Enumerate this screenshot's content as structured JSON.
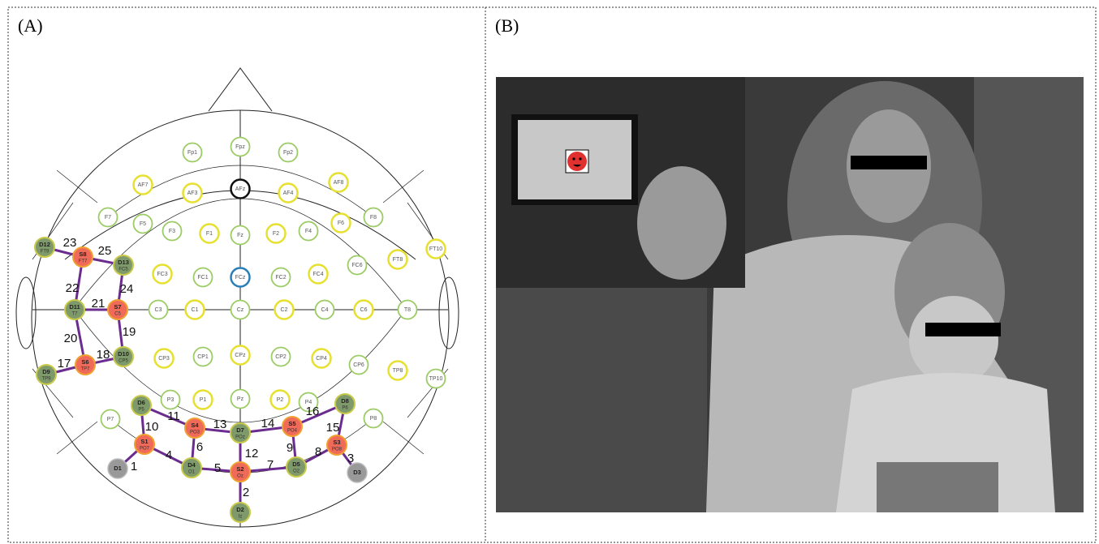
{
  "panels": [
    {
      "label": "(A)"
    },
    {
      "label": "(B)"
    }
  ],
  "electrodes": [
    {
      "label": "Fp1"
    },
    {
      "label": "Fpz"
    },
    {
      "label": "Fp2"
    },
    {
      "label": "AF7"
    },
    {
      "label": "AF3"
    },
    {
      "label": "AFz"
    },
    {
      "label": "AF4"
    },
    {
      "label": "AF8"
    },
    {
      "label": "F7"
    },
    {
      "label": "F5"
    },
    {
      "label": "F3"
    },
    {
      "label": "F1"
    },
    {
      "label": "Fz"
    },
    {
      "label": "F2"
    },
    {
      "label": "F4"
    },
    {
      "label": "F6"
    },
    {
      "label": "F8"
    },
    {
      "label": "D12",
      "sublabel": "FT9"
    },
    {
      "label": "S8",
      "sublabel": "FT7"
    },
    {
      "label": "D13",
      "sublabel": "FC5"
    },
    {
      "label": "FC3"
    },
    {
      "label": "FC1"
    },
    {
      "label": "FCz"
    },
    {
      "label": "FC2"
    },
    {
      "label": "FC4"
    },
    {
      "label": "FC6"
    },
    {
      "label": "FT8"
    },
    {
      "label": "FT10"
    },
    {
      "label": "D11",
      "sublabel": "T7"
    },
    {
      "label": "S7",
      "sublabel": "C5"
    },
    {
      "label": "C3"
    },
    {
      "label": "C1"
    },
    {
      "label": "Cz"
    },
    {
      "label": "C2"
    },
    {
      "label": "C4"
    },
    {
      "label": "C6"
    },
    {
      "label": "T8"
    },
    {
      "label": "D9",
      "sublabel": "TP9"
    },
    {
      "label": "S6",
      "sublabel": "TP7"
    },
    {
      "label": "D10",
      "sublabel": "CP5"
    },
    {
      "label": "CP3"
    },
    {
      "label": "CP1"
    },
    {
      "label": "CPz"
    },
    {
      "label": "CP2"
    },
    {
      "label": "CP4"
    },
    {
      "label": "CP6"
    },
    {
      "label": "TP8"
    },
    {
      "label": "TP10"
    },
    {
      "label": "D6",
      "sublabel": "P5"
    },
    {
      "label": "P3"
    },
    {
      "label": "P1"
    },
    {
      "label": "Pz"
    },
    {
      "label": "P2"
    },
    {
      "label": "P4"
    },
    {
      "label": "D8",
      "sublabel": "P6"
    },
    {
      "label": "P8"
    },
    {
      "label": "P7"
    },
    {
      "label": "S4",
      "sublabel": "PO3"
    },
    {
      "label": "D7",
      "sublabel": "POz"
    },
    {
      "label": "S5",
      "sublabel": "PO4"
    },
    {
      "label": "S1",
      "sublabel": "PO7"
    },
    {
      "label": "S3",
      "sublabel": "PO8"
    },
    {
      "label": "D1"
    },
    {
      "label": "D4",
      "sublabel": "O1"
    },
    {
      "label": "S2",
      "sublabel": "Oz"
    },
    {
      "label": "D5",
      "sublabel": "O2"
    },
    {
      "label": "D3"
    },
    {
      "label": "D2",
      "sublabel": "Iz"
    }
  ],
  "channels": [
    "1",
    "2",
    "3",
    "4",
    "5",
    "6",
    "7",
    "8",
    "9",
    "10",
    "11",
    "12",
    "13",
    "14",
    "15",
    "16",
    "17",
    "18",
    "19",
    "20",
    "21",
    "22",
    "23",
    "24",
    "25"
  ]
}
